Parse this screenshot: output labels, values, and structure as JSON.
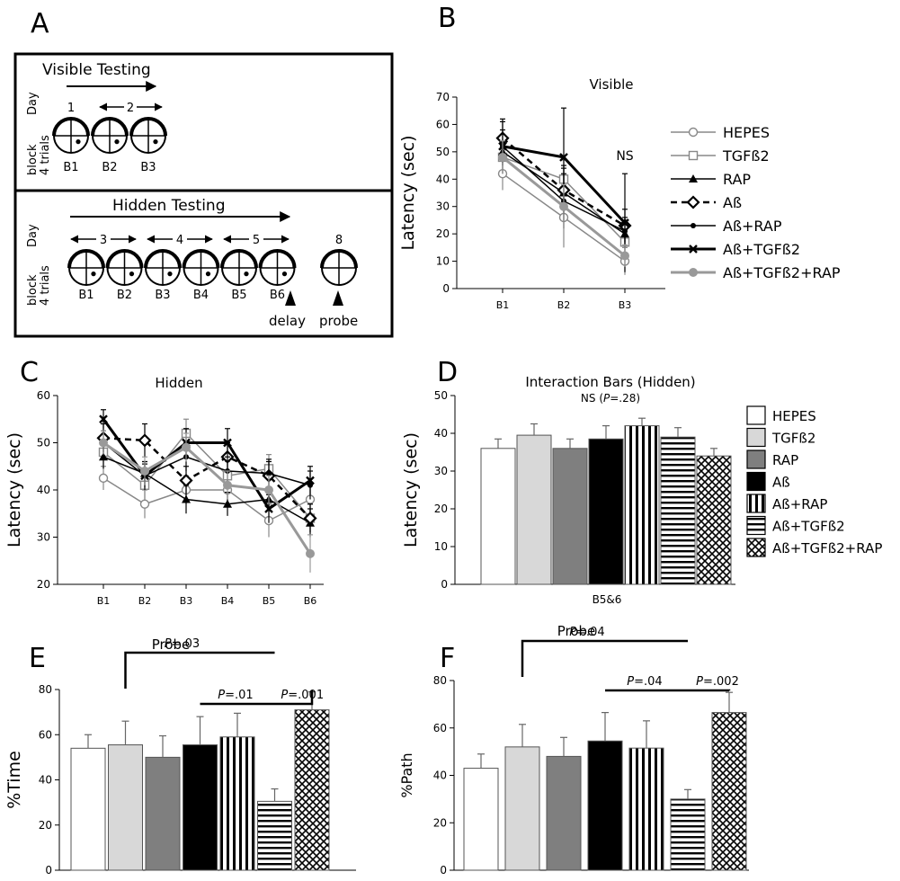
{
  "panel_labels": [
    "A",
    "B",
    "C",
    "D",
    "E",
    "F"
  ],
  "schematic": {
    "visible": {
      "title": "Visible Testing",
      "day_axis": "Day",
      "block_axis": [
        "block",
        "4 trials"
      ],
      "day_marks": [
        "1",
        "2"
      ],
      "blocks": [
        "B1",
        "B2",
        "B3"
      ]
    },
    "hidden": {
      "title": "Hidden Testing",
      "day_axis": "Day",
      "block_axis": [
        "block",
        "4 trials"
      ],
      "day_marks": [
        "3",
        "4",
        "5",
        "8"
      ],
      "blocks": [
        "B1",
        "B2",
        "B3",
        "B4",
        "B5",
        "B6"
      ],
      "delay_label": "delay",
      "probe_label": "probe"
    }
  },
  "legend_line": [
    {
      "name": "HEPES",
      "marker": "circle-open",
      "color": "#888888",
      "dash": false,
      "width": 1.5
    },
    {
      "name": "TGFß2",
      "marker": "square-open",
      "color": "#888888",
      "dash": false,
      "width": 1.5
    },
    {
      "name": "RAP",
      "marker": "triangle",
      "color": "#000000",
      "dash": false,
      "width": 1.5
    },
    {
      "name": "Aß",
      "marker": "diamond-open",
      "color": "#000000",
      "dash": true,
      "width": 2.5
    },
    {
      "name": "Aß+RAP",
      "marker": "dot",
      "color": "#000000",
      "dash": false,
      "width": 1.5
    },
    {
      "name": "Aß+TGFß2",
      "marker": "x",
      "color": "#000000",
      "dash": false,
      "width": 3
    },
    {
      "name": "Aß+TGFß2+RAP",
      "marker": "circle-filled",
      "color": "#999999",
      "dash": false,
      "width": 3
    }
  ],
  "legend_bar": [
    {
      "name": "HEPES",
      "fill": "white"
    },
    {
      "name": "TGFß2",
      "fill": "lightgray"
    },
    {
      "name": "RAP",
      "fill": "gray"
    },
    {
      "name": "Aß",
      "fill": "black"
    },
    {
      "name": "Aß+RAP",
      "fill": "vlines"
    },
    {
      "name": "Aß+TGFß2",
      "fill": "hlines"
    },
    {
      "name": "Aß+TGFß2+RAP",
      "fill": "cross"
    }
  ],
  "chart_data": [
    {
      "panel": "B",
      "type": "line",
      "title": "Visible",
      "ylabel": "Latency (sec)",
      "xlabel": "",
      "categories": [
        "B1",
        "B2",
        "B3"
      ],
      "ylim": [
        0,
        70
      ],
      "yticks": [
        0,
        10,
        20,
        30,
        40,
        50,
        60,
        70
      ],
      "annotations": [
        {
          "text": "NS",
          "at": "B3"
        }
      ],
      "series": [
        {
          "name": "HEPES",
          "values": [
            42,
            26,
            10
          ],
          "errors": [
            6,
            11,
            5
          ]
        },
        {
          "name": "TGFß2",
          "values": [
            48,
            40,
            17
          ],
          "errors": [
            6,
            7,
            5
          ]
        },
        {
          "name": "RAP",
          "values": [
            50,
            35,
            20
          ],
          "errors": [
            5,
            10,
            5
          ]
        },
        {
          "name": "Aß",
          "values": [
            55,
            36,
            23
          ],
          "errors": [
            6,
            8,
            6
          ]
        },
        {
          "name": "Aß+RAP",
          "values": [
            52,
            32,
            21
          ],
          "errors": [
            6,
            10,
            5
          ]
        },
        {
          "name": "Aß+TGFß2",
          "values": [
            52,
            48,
            24
          ],
          "errors": [
            10,
            18,
            18
          ]
        },
        {
          "name": "Aß+TGFß2+RAP",
          "values": [
            48,
            30,
            12
          ],
          "errors": [
            6,
            8,
            4
          ]
        }
      ]
    },
    {
      "panel": "C",
      "type": "line",
      "title": "Hidden",
      "ylabel": "Latency (sec)",
      "xlabel": "",
      "categories": [
        "B1",
        "B2",
        "B3",
        "B4",
        "B5",
        "B6"
      ],
      "ylim": [
        20,
        60
      ],
      "yticks": [
        20,
        30,
        40,
        50,
        60
      ],
      "series": [
        {
          "name": "HEPES",
          "values": [
            42.5,
            37,
            40,
            40,
            33.5,
            38
          ],
          "errors": [
            2.5,
            3,
            3,
            2.5,
            3.5,
            3
          ]
        },
        {
          "name": "TGFß2",
          "values": [
            48,
            41,
            52,
            43,
            44.5,
            34
          ],
          "errors": [
            3,
            3,
            3,
            3,
            3,
            3
          ]
        },
        {
          "name": "RAP",
          "values": [
            47,
            43.5,
            38,
            37,
            38,
            33
          ],
          "errors": [
            2.5,
            2.5,
            3,
            2.5,
            2.5,
            3
          ]
        },
        {
          "name": "Aß",
          "values": [
            51,
            50.5,
            42,
            47,
            43,
            34
          ],
          "errors": [
            3,
            3.5,
            3,
            3,
            3,
            3
          ]
        },
        {
          "name": "Aß+RAP",
          "values": [
            50,
            43,
            47,
            44,
            43.5,
            41
          ],
          "errors": [
            2.5,
            2.5,
            3,
            3,
            3,
            3
          ]
        },
        {
          "name": "Aß+TGFß2",
          "values": [
            55,
            43,
            50,
            50,
            36,
            42
          ],
          "errors": [
            2,
            3,
            3,
            3,
            3,
            3
          ]
        },
        {
          "name": "Aß+TGFß2+RAP",
          "values": [
            50,
            44,
            49,
            41,
            40,
            26.5
          ],
          "errors": [
            2.5,
            3,
            3,
            3,
            3,
            4
          ]
        }
      ]
    },
    {
      "panel": "D",
      "type": "bar",
      "title": "Interaction Bars (Hidden)",
      "subtitle_parts": [
        "NS (",
        "P",
        "=.28)"
      ],
      "ylabel": "Latency (sec)",
      "xlabel": "B5&6",
      "ylim": [
        0,
        50
      ],
      "yticks": [
        0,
        10,
        20,
        30,
        40,
        50
      ],
      "categories": [
        "HEPES",
        "TGFß2",
        "RAP",
        "Aß",
        "Aß+RAP",
        "Aß+TGFß2",
        "Aß+TGFß2+RAP"
      ],
      "values": [
        36,
        39.5,
        36,
        38.5,
        42,
        39,
        34
      ],
      "errors": [
        2.5,
        3,
        2.5,
        3.5,
        2,
        2.5,
        2
      ]
    },
    {
      "panel": "E",
      "type": "bar",
      "title": "Probe",
      "ylabel": "%Time",
      "xlabel": "",
      "ylim": [
        0,
        80
      ],
      "yticks": [
        0,
        20,
        40,
        60,
        80
      ],
      "categories": [
        "HEPES",
        "TGFß2",
        "RAP",
        "Aß",
        "Aß+RAP",
        "Aß+TGFß2",
        "Aß+TGFß2+RAP"
      ],
      "values": [
        54,
        55.5,
        50,
        55.5,
        59,
        30.5,
        71
      ],
      "errors": [
        6,
        10.5,
        9.5,
        12.5,
        10.5,
        5.5,
        8
      ],
      "comparisons": [
        {
          "from": 1,
          "to": 5,
          "label_p": "P",
          "label_rest": "=.03"
        },
        {
          "from": 3,
          "to": 5,
          "label_p": "P",
          "label_rest": "=.01"
        },
        {
          "from": 5,
          "to": 6,
          "label_p": "P",
          "label_rest": "=.001"
        }
      ]
    },
    {
      "panel": "F",
      "type": "bar",
      "title": "Probe",
      "ylabel": "%Path",
      "xlabel": "",
      "ylim": [
        0,
        80
      ],
      "yticks": [
        0,
        20,
        40,
        60,
        80
      ],
      "categories": [
        "HEPES",
        "TGFß2",
        "RAP",
        "Aß",
        "Aß+RAP",
        "Aß+TGFß2",
        "Aß+TGFß2+RAP"
      ],
      "values": [
        43,
        52,
        48,
        54.5,
        51.5,
        30,
        66.5
      ],
      "errors": [
        6,
        9.5,
        8,
        12,
        11.5,
        4,
        8.5
      ],
      "comparisons": [
        {
          "from": 1,
          "to": 5,
          "label_p": "P",
          "label_rest": "=.04"
        },
        {
          "from": 3,
          "to": 5,
          "label_p": "P",
          "label_rest": "=.04"
        },
        {
          "from": 5,
          "to": 6,
          "label_p": "P",
          "label_rest": "=.002"
        }
      ]
    }
  ]
}
